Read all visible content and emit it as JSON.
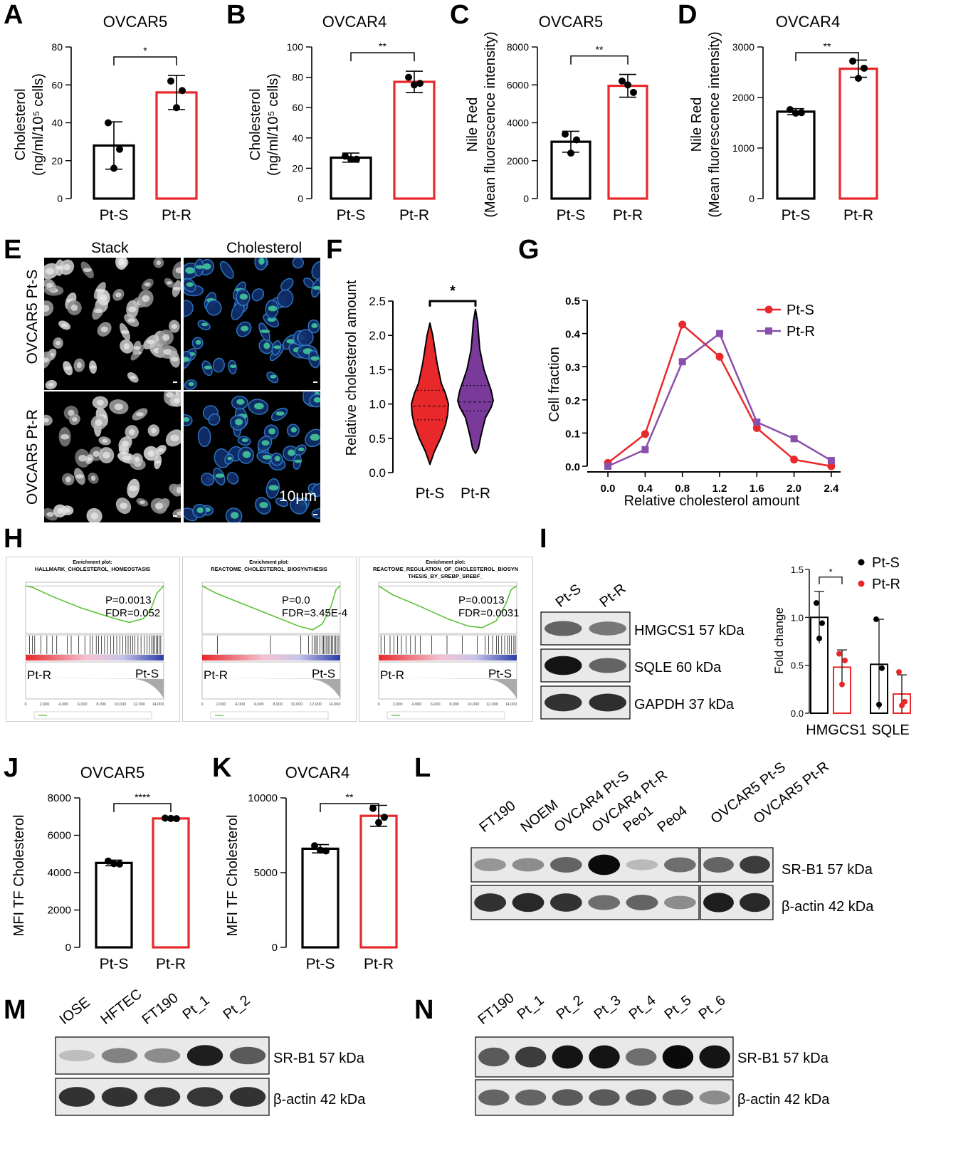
{
  "panels": {
    "A": {
      "letter": "A",
      "title": "OVCAR5",
      "ylabel_line1": "Cholesterol",
      "ylabel_line2": "(ng/ml/10⁵ cells)",
      "yticks": [
        "0",
        "20",
        "40",
        "60",
        "80"
      ],
      "categories": [
        "Pt-S",
        "Pt-R"
      ],
      "sig": "*"
    },
    "B": {
      "letter": "B",
      "title": "OVCAR4",
      "ylabel_line1": "Cholesterol",
      "ylabel_line2": "(ng/ml/10⁵ cells)",
      "yticks": [
        "0",
        "20",
        "40",
        "60",
        "80",
        "100"
      ],
      "categories": [
        "Pt-S",
        "Pt-R"
      ],
      "sig": "**"
    },
    "C": {
      "letter": "C",
      "title": "OVCAR5",
      "ylabel_line1": "Nile Red",
      "ylabel_line2": "(Mean fluorescence intensity)",
      "yticks": [
        "0",
        "2000",
        "4000",
        "6000",
        "8000"
      ],
      "categories": [
        "Pt-S",
        "Pt-R"
      ],
      "sig": "**"
    },
    "D": {
      "letter": "D",
      "title": "OVCAR4",
      "ylabel_line1": "Nile Red",
      "ylabel_line2": "(Mean fluorescence intensity)",
      "yticks": [
        "0",
        "1000",
        "2000",
        "3000"
      ],
      "categories": [
        "Pt-S",
        "Pt-R"
      ],
      "sig": "**"
    },
    "E": {
      "letter": "E",
      "col1": "Stack",
      "col2": "Cholesterol",
      "row1": "OVCAR5 Pt-S",
      "row2": "OVCAR5 Pt-R",
      "scale": "10μm"
    },
    "F": {
      "letter": "F",
      "ylabel": "Relative cholesterol amount",
      "yticks": [
        "0.0",
        "0.5",
        "1.0",
        "1.5",
        "2.0",
        "2.5"
      ],
      "categories": [
        "Pt-S",
        "Pt-R"
      ],
      "sig": "*"
    },
    "G": {
      "letter": "G",
      "ylabel": "Cell fraction",
      "xlabel": "Relative cholesterol amount",
      "xticks": [
        "0.0",
        "0.4",
        "0.8",
        "1.2",
        "1.6",
        "2.0",
        "2.4"
      ],
      "yticks": [
        "0.0",
        "0.1",
        "0.2",
        "0.3",
        "0.4",
        "0.5"
      ],
      "legend": [
        "Pt-S",
        "Pt-R"
      ]
    },
    "H": {
      "letter": "H",
      "plots": [
        {
          "t1": "Enrichment plot:",
          "t2": "HALLMARK_CHOLESTEROL_HOMEOSTASIS",
          "t3": "",
          "p": "P=0.0013",
          "fdr": "FDR=0.052",
          "left": "Pt-R",
          "right": "Pt-S"
        },
        {
          "t1": "Enrichment plot:",
          "t2": "REACTOME_CHOLESTEROL_BIOSYNTHESIS",
          "t3": "",
          "p": "P=0.0",
          "fdr": "FDR=3.45E-4",
          "left": "Pt-R",
          "right": "Pt-S"
        },
        {
          "t1": "Enrichment plot:",
          "t2": "REACTOME_REGULATION_OF_CHOLESTEROL_BIOSYN",
          "t3": "THESIS_BY_SREBP_SREBF_",
          "p": "P=0.0013",
          "fdr": "FDR=0.0031",
          "left": "Pt-R",
          "right": "Pt-S"
        }
      ]
    },
    "I": {
      "letter": "I",
      "lanes": [
        "Pt-S",
        "Pt-R"
      ],
      "bands": [
        "HMGCS1 57 kDa",
        "SQLE 60 kDa",
        "GAPDH 37 kDa"
      ],
      "ylabel": "Fold change",
      "yticks": [
        "0.0",
        "0.5",
        "1.0",
        "1.5"
      ],
      "categories": [
        "HMGCS1",
        "SQLE"
      ],
      "legend": [
        "Pt-S",
        "Pt-R"
      ],
      "sig": "*"
    },
    "J": {
      "letter": "J",
      "title": "OVCAR5",
      "ylabel": "MFI TF Cholesterol",
      "yticks": [
        "0",
        "2000",
        "4000",
        "6000",
        "8000"
      ],
      "categories": [
        "Pt-S",
        "Pt-R"
      ],
      "sig": "****"
    },
    "K": {
      "letter": "K",
      "title": "OVCAR4",
      "ylabel": "MFI TF Cholesterol",
      "yticks": [
        "0",
        "5000",
        "10000"
      ],
      "categories": [
        "Pt-S",
        "Pt-R"
      ],
      "sig": "**"
    },
    "L": {
      "letter": "L",
      "lanes": [
        "FT190",
        "NOEM",
        "OVCAR4 Pt-S",
        "OVCAR4 Pt-R",
        "Peo1",
        "Peo4",
        "OVCAR5 Pt-S",
        "OVCAR5 Pt-R"
      ],
      "bands": [
        "SR-B1 57 kDa",
        "β-actin 42 kDa"
      ]
    },
    "M": {
      "letter": "M",
      "lanes": [
        "IOSE",
        "HFTEC",
        "FT190",
        "Pt_1",
        "Pt_2"
      ],
      "bands": [
        "SR-B1 57 kDa",
        "β-actin 42 kDa"
      ]
    },
    "N": {
      "letter": "N",
      "lanes": [
        "FT190",
        "Pt_1",
        "Pt_2",
        "Pt_3",
        "Pt_4",
        "Pt_5",
        "Pt_6"
      ],
      "bands": [
        "SR-B1 57 kDa",
        "β-actin 42 kDa"
      ]
    }
  },
  "colors": {
    "sensitive": "#000000",
    "resistant": "#e8282b",
    "violin_s": "#e8282b",
    "violin_r": "#7a3a9a",
    "line_r": "#8a4faa",
    "gsea_line": "#5cc23a"
  },
  "chart_data": [
    {
      "type": "bar",
      "panel": "A",
      "title": "OVCAR5",
      "ylabel": "Cholesterol (ng/ml/10⁵ cells)",
      "categories": [
        "Pt-S",
        "Pt-R"
      ],
      "values": [
        28,
        56
      ],
      "errors": [
        12.5,
        9
      ],
      "points": [
        [
          40,
          26,
          16
        ],
        [
          62,
          57,
          48
        ]
      ],
      "ylim": [
        0,
        80
      ]
    },
    {
      "type": "bar",
      "panel": "B",
      "title": "OVCAR4",
      "ylabel": "Cholesterol (ng/ml/10⁵ cells)",
      "categories": [
        "Pt-S",
        "Pt-R"
      ],
      "values": [
        27,
        77
      ],
      "errors": [
        3,
        7
      ],
      "points": [
        [
          28,
          26,
          26
        ],
        [
          80,
          76,
          75
        ]
      ],
      "ylim": [
        0,
        100
      ]
    },
    {
      "type": "bar",
      "panel": "C",
      "title": "OVCAR5",
      "ylabel": "Nile Red (Mean fluorescence intensity)",
      "categories": [
        "Pt-S",
        "Pt-R"
      ],
      "values": [
        3000,
        5950
      ],
      "errors": [
        550,
        600
      ],
      "points": [
        [
          3400,
          3100,
          2400
        ],
        [
          6200,
          5600,
          6000
        ]
      ],
      "ylim": [
        0,
        8000
      ]
    },
    {
      "type": "bar",
      "panel": "D",
      "title": "OVCAR4",
      "ylabel": "Nile Red (Mean fluorescence intensity)",
      "categories": [
        "Pt-S",
        "Pt-R"
      ],
      "values": [
        1720,
        2570
      ],
      "errors": [
        60,
        170
      ],
      "points": [
        [
          1760,
          1700,
          1690
        ],
        [
          2720,
          2580,
          2380
        ]
      ],
      "ylim": [
        0,
        3000
      ]
    },
    {
      "type": "violin",
      "panel": "F",
      "ylabel": "Relative cholesterol amount",
      "categories": [
        "Pt-S",
        "Pt-R"
      ],
      "median": [
        0.97,
        1.03
      ],
      "quartiles": [
        [
          0.77,
          1.2
        ],
        [
          0.9,
          1.27
        ]
      ],
      "range": [
        [
          0.12,
          2.18
        ],
        [
          0.28,
          2.38
        ]
      ],
      "ylim": [
        0,
        2.5
      ]
    },
    {
      "type": "line",
      "panel": "G",
      "xlabel": "Relative cholesterol amount",
      "ylabel": "Cell fraction",
      "x": [
        0.0,
        0.4,
        0.8,
        1.2,
        1.6,
        2.0,
        2.4
      ],
      "series": [
        {
          "name": "Pt-S",
          "values": [
            0.01,
            0.097,
            0.427,
            0.33,
            0.115,
            0.02,
            0.0
          ]
        },
        {
          "name": "Pt-R",
          "values": [
            0.0,
            0.05,
            0.315,
            0.4,
            0.133,
            0.083,
            0.017
          ]
        }
      ],
      "xlim": [
        -0.1,
        2.5
      ],
      "ylim": [
        0,
        0.5
      ]
    },
    {
      "type": "bar",
      "panel": "I",
      "ylabel": "Fold change",
      "categories": [
        "HMGCS1",
        "SQLE"
      ],
      "series": [
        {
          "name": "Pt-S",
          "values": [
            1.0,
            0.51
          ],
          "errors": [
            0.27,
            0.47
          ],
          "points": [
            [
              1.15,
              0.94,
              0.78
            ],
            [
              0.98,
              0.47,
              0.09
            ]
          ]
        },
        {
          "name": "Pt-R",
          "values": [
            0.48,
            0.2
          ],
          "errors": [
            0.18,
            0.2
          ],
          "points": [
            [
              0.62,
              0.55,
              0.3
            ],
            [
              0.43,
              0.12,
              0.08
            ]
          ]
        }
      ],
      "ylim": [
        0,
        1.5
      ]
    },
    {
      "type": "bar",
      "panel": "J",
      "title": "OVCAR5",
      "ylabel": "MFI TF Cholesterol",
      "categories": [
        "Pt-S",
        "Pt-R"
      ],
      "values": [
        4520,
        6900
      ],
      "errors": [
        150,
        40
      ],
      "points": [
        [
          4620,
          4460,
          4480
        ],
        [
          6920,
          6890,
          6900
        ]
      ],
      "ylim": [
        0,
        8000
      ]
    },
    {
      "type": "bar",
      "panel": "K",
      "title": "OVCAR4",
      "ylabel": "MFI TF Cholesterol",
      "categories": [
        "Pt-S",
        "Pt-R"
      ],
      "values": [
        6600,
        8800
      ],
      "errors": [
        280,
        700
      ],
      "points": [
        [
          6800,
          6450,
          6500
        ],
        [
          9300,
          8700,
          8350
        ]
      ],
      "ylim": [
        0,
        10000
      ]
    }
  ]
}
